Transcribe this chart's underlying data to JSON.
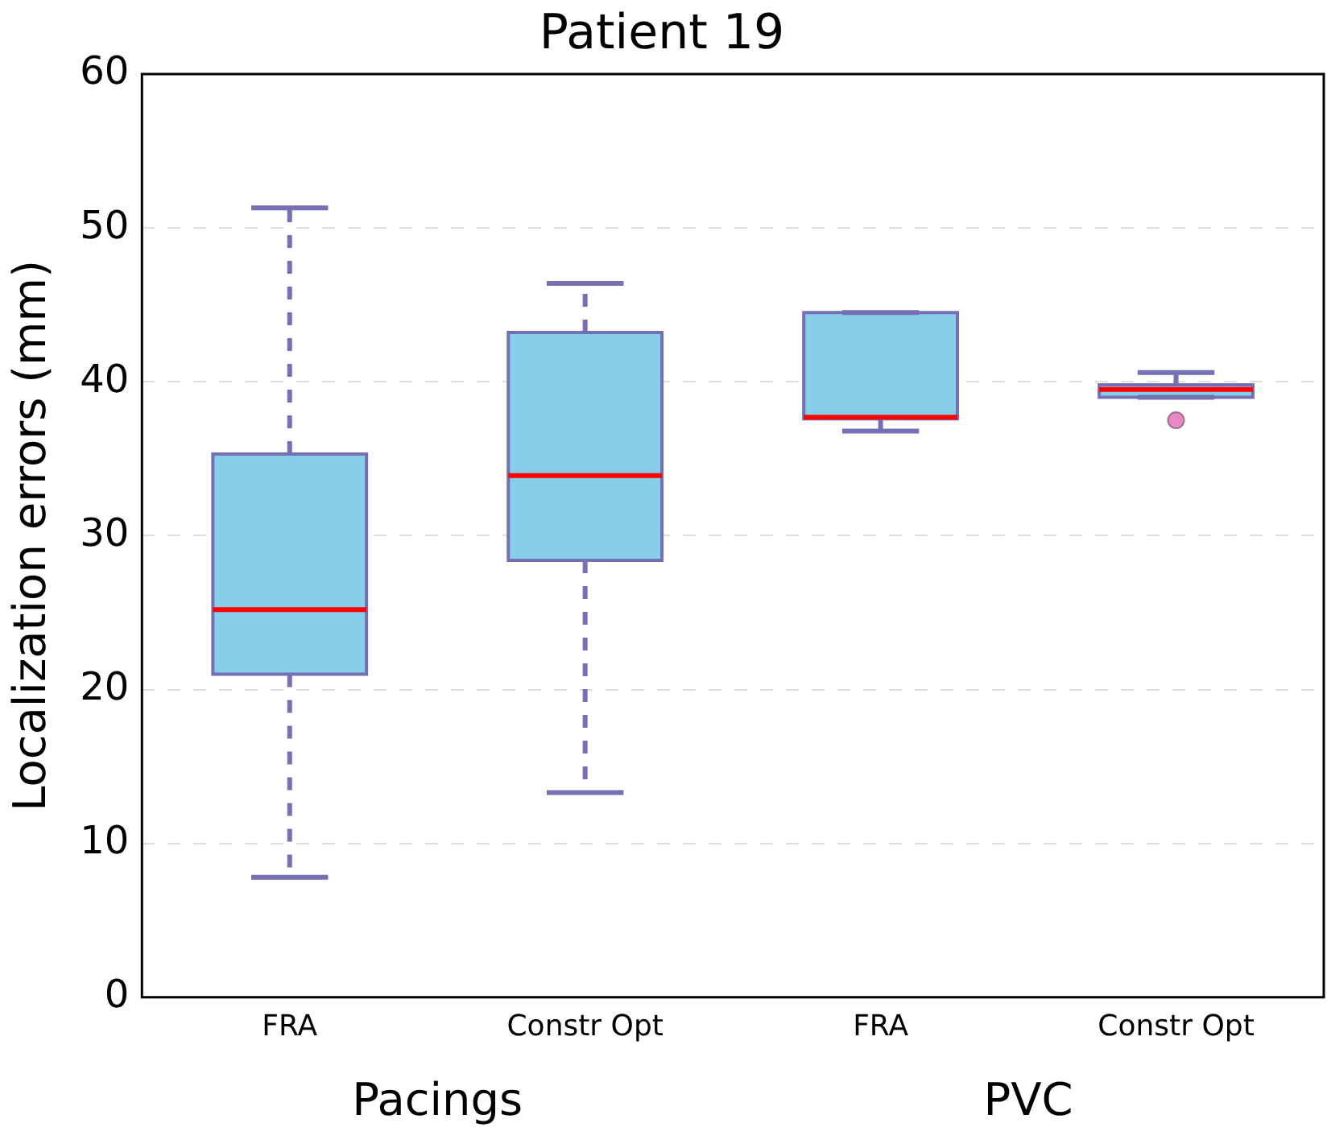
{
  "chart_data": {
    "type": "box",
    "title": "Patient 19",
    "ylabel": "Localization errors (mm)",
    "categories": [
      "FRA",
      "Constr Opt",
      "FRA",
      "Constr Opt"
    ],
    "series": [
      {
        "color": "#87ceeb",
        "boxes": [
          {
            "low": 7.8,
            "q1": 21.0,
            "median": 25.2,
            "q3": 35.3,
            "high": 51.3
          },
          {
            "low": 13.3,
            "q1": 28.4,
            "median": 33.9,
            "q3": 43.2,
            "high": 46.4
          },
          {
            "low": 36.8,
            "q1": 37.6,
            "median": 37.7,
            "q3": 44.5,
            "high": 44.5
          },
          {
            "low": 39.0,
            "q1": 39.0,
            "median": 39.5,
            "q3": 39.8,
            "high": 40.6,
            "outliers": [
              37.5
            ]
          }
        ]
      }
    ],
    "ylim": [
      0,
      60
    ],
    "yticks": [
      0,
      10,
      20,
      30,
      40,
      50,
      60
    ],
    "grid": "y",
    "legend": false,
    "annotations": [
      "Pacings",
      "PVC"
    ]
  }
}
